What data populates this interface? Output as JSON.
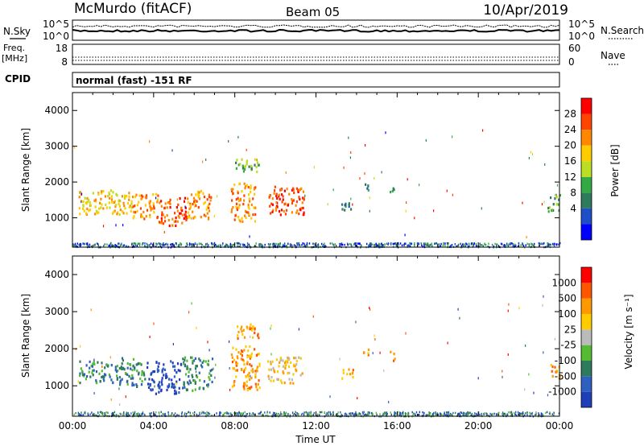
{
  "header": {
    "station": "McMurdo (fitACF)",
    "beam": "Beam 05",
    "date": "10/Apr/2019"
  },
  "panels": {
    "nsky": {
      "label": "N.Sky",
      "ticks": [
        "10^5",
        "10^0"
      ]
    },
    "nsearch": {
      "label": "N.Search",
      "ticks": [
        "10^5",
        "10^0"
      ]
    },
    "freq": {
      "label_top": "Freq.",
      "label_unit": "[MHz]",
      "ticks": [
        "18",
        "8"
      ]
    },
    "nave": {
      "label": "Nave",
      "ticks": [
        "60",
        "0"
      ]
    },
    "cpid": {
      "label": "CPID",
      "program": "normal (fast) -151 RF"
    }
  },
  "chart_data": [
    {
      "type": "heatmap",
      "name": "power",
      "ylabel": "Slant Range [km]",
      "xlabel": "",
      "x_ticks": [
        "00:00",
        "04:00",
        "08:00",
        "12:00",
        "16:00",
        "20:00",
        "00:00"
      ],
      "x_range_hours": [
        0,
        24
      ],
      "y_ticks": [
        1000,
        2000,
        3000,
        4000
      ],
      "y_range_km": [
        180,
        4500
      ],
      "colorbar": {
        "label": "Power [dB]",
        "ticks": [
          "28",
          "24",
          "20",
          "16",
          "12",
          "8",
          "4"
        ],
        "colors": [
          "#0000ff",
          "#1f4fc8",
          "#2e7a5c",
          "#33aa44",
          "#bbdd22",
          "#ffcc00",
          "#ff8800",
          "#ff4400",
          "#ff0000"
        ]
      },
      "echo_regions": [
        {
          "t0": 0.3,
          "t1": 2.9,
          "r0": 1100,
          "r1": 1800,
          "level": 5
        },
        {
          "t0": 2.9,
          "t1": 4.2,
          "r0": 1000,
          "r1": 1700,
          "level": 6
        },
        {
          "t0": 4.2,
          "t1": 5.6,
          "r0": 800,
          "r1": 1600,
          "level": 7
        },
        {
          "t0": 5.6,
          "t1": 6.8,
          "r0": 1000,
          "r1": 1800,
          "level": 6
        },
        {
          "t0": 7.8,
          "t1": 9.0,
          "r0": 900,
          "r1": 2000,
          "level": 6
        },
        {
          "t0": 8.0,
          "t1": 9.2,
          "r0": 2300,
          "r1": 2700,
          "level": 3
        },
        {
          "t0": 9.6,
          "t1": 11.4,
          "r0": 1100,
          "r1": 1900,
          "level": 7
        },
        {
          "t0": 13.2,
          "t1": 13.8,
          "r0": 1200,
          "r1": 1500,
          "level": 2
        },
        {
          "t0": 14.3,
          "t1": 14.6,
          "r0": 1800,
          "r1": 2100,
          "level": 2
        },
        {
          "t0": 15.6,
          "t1": 15.9,
          "r0": 1700,
          "r1": 1950,
          "level": 2
        },
        {
          "t0": 23.4,
          "t1": 24.0,
          "r0": 1200,
          "r1": 1700,
          "level": 3
        }
      ]
    },
    {
      "type": "heatmap",
      "name": "velocity",
      "ylabel": "Slant Range [km]",
      "xlabel": "Time UT",
      "x_ticks": [
        "00:00",
        "04:00",
        "08:00",
        "12:00",
        "16:00",
        "20:00",
        "00:00"
      ],
      "x_range_hours": [
        0,
        24
      ],
      "y_ticks": [
        1000,
        2000,
        3000,
        4000
      ],
      "y_range_km": [
        180,
        4500
      ],
      "colorbar": {
        "label": "Velocity [m s⁻¹]",
        "ticks": [
          "1000",
          "500",
          "100",
          "25",
          "-25",
          "-100",
          "-500",
          "-1000"
        ],
        "colors": [
          "#1f3fb8",
          "#2f60c0",
          "#2e7a5c",
          "#55bb33",
          "#bbbbbb",
          "#ffcc00",
          "#ff9900",
          "#ff5500",
          "#ff0000"
        ]
      },
      "echo_regions": [
        {
          "t0": 0.3,
          "t1": 2.2,
          "r0": 1100,
          "r1": 1700,
          "level": 2
        },
        {
          "t0": 2.2,
          "t1": 3.6,
          "r0": 1000,
          "r1": 1800,
          "level": 2
        },
        {
          "t0": 3.6,
          "t1": 5.4,
          "r0": 800,
          "r1": 1700,
          "level": 0
        },
        {
          "t0": 5.4,
          "t1": 6.9,
          "r0": 900,
          "r1": 1800,
          "level": 2
        },
        {
          "t0": 7.8,
          "t1": 9.2,
          "r0": 900,
          "r1": 2100,
          "level": 6
        },
        {
          "t0": 8.0,
          "t1": 9.2,
          "r0": 2300,
          "r1": 2700,
          "level": 6
        },
        {
          "t0": 9.6,
          "t1": 11.3,
          "r0": 1100,
          "r1": 1800,
          "level": 5
        },
        {
          "t0": 13.2,
          "t1": 13.8,
          "r0": 1200,
          "r1": 1500,
          "level": 6
        },
        {
          "t0": 14.3,
          "t1": 14.6,
          "r0": 1800,
          "r1": 2100,
          "level": 6
        },
        {
          "t0": 15.6,
          "t1": 15.9,
          "r0": 1700,
          "r1": 1950,
          "level": 6
        },
        {
          "t0": 23.4,
          "t1": 24.0,
          "r0": 1200,
          "r1": 1600,
          "level": 6
        }
      ]
    }
  ],
  "colors": {
    "axis": "#000000",
    "background": "#ffffff"
  }
}
